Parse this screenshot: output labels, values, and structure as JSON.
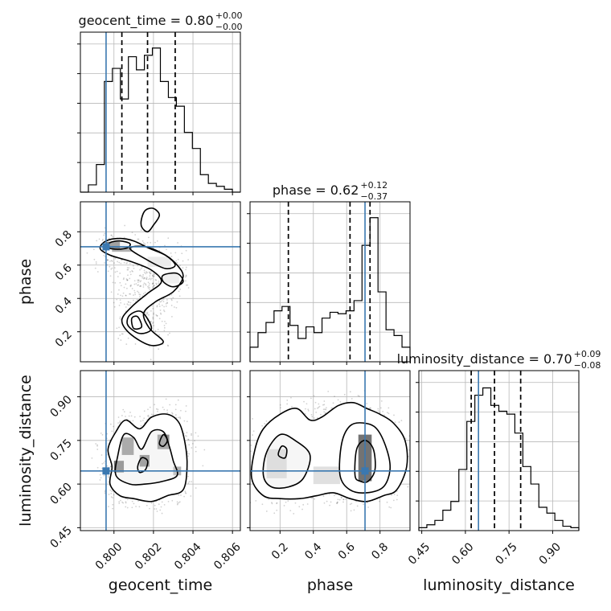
{
  "chart_data": {
    "type": "corner",
    "truth_color": "#3a78b0",
    "parameters": [
      {
        "name": "geocent_time",
        "axis_label": "geocent_time",
        "title_text": "geocent_time = 0.80",
        "title_sup": "+0.00",
        "title_sub": "−0.00",
        "range": [
          0.7983,
          0.8064
        ],
        "ticks": [
          0.8,
          0.802,
          0.804,
          0.806
        ],
        "tick_labels": [
          "0.800",
          "0.802",
          "0.804",
          "0.806"
        ],
        "truth": 0.7996,
        "quantiles": [
          0.8004,
          0.8017,
          0.8031
        ],
        "hist": [
          0.0,
          0.05,
          0.19,
          0.76,
          0.85,
          0.64,
          0.93,
          0.84,
          0.94,
          0.99,
          0.76,
          0.65,
          0.59,
          0.41,
          0.3,
          0.12,
          0.06,
          0.04,
          0.02,
          0.0
        ]
      },
      {
        "name": "phase",
        "axis_label": "phase",
        "title_text": "phase = 0.62",
        "title_sup": "+0.12",
        "title_sub": "−0.37",
        "range": [
          0.02,
          0.98
        ],
        "ticks": [
          0.2,
          0.4,
          0.6,
          0.8
        ],
        "tick_labels": [
          "0.2",
          "0.4",
          "0.6",
          "0.8"
        ],
        "truth": 0.71,
        "quantiles": [
          0.25,
          0.62,
          0.74
        ],
        "hist": [
          0.1,
          0.2,
          0.27,
          0.35,
          0.38,
          0.25,
          0.16,
          0.24,
          0.2,
          0.3,
          0.34,
          0.33,
          0.35,
          0.42,
          0.8,
          0.99,
          0.48,
          0.22,
          0.18,
          0.1
        ]
      },
      {
        "name": "luminosity_distance",
        "axis_label": "luminosity_distance",
        "title_text": "luminosity_distance = 0.70",
        "title_sup": "+0.09",
        "title_sub": "−0.08",
        "range": [
          0.44,
          0.99
        ],
        "ticks": [
          0.45,
          0.6,
          0.75,
          0.9
        ],
        "tick_labels": [
          "0.45",
          "0.60",
          "0.75",
          "0.90"
        ],
        "truth": 0.645,
        "quantiles": [
          0.62,
          0.7,
          0.79
        ],
        "hist": [
          0.02,
          0.04,
          0.07,
          0.14,
          0.2,
          0.42,
          0.75,
          0.93,
          0.98,
          0.86,
          0.82,
          0.8,
          0.67,
          0.44,
          0.32,
          0.16,
          0.12,
          0.07,
          0.03,
          0.02
        ]
      }
    ],
    "pairs": [
      {
        "x": "geocent_time",
        "y": "phase",
        "contours": [
          [
            [
              0.7996,
              0.745
            ],
            [
              0.8003,
              0.76
            ],
            [
              0.801,
              0.745
            ],
            [
              0.8018,
              0.7
            ],
            [
              0.8026,
              0.66
            ],
            [
              0.8032,
              0.6
            ],
            [
              0.8035,
              0.53
            ],
            [
              0.803,
              0.44
            ],
            [
              0.8021,
              0.38
            ],
            [
              0.8015,
              0.31
            ],
            [
              0.8018,
              0.22
            ],
            [
              0.8025,
              0.14
            ],
            [
              0.8018,
              0.12
            ],
            [
              0.8008,
              0.19
            ],
            [
              0.8004,
              0.27
            ],
            [
              0.8009,
              0.35
            ],
            [
              0.8017,
              0.43
            ],
            [
              0.8024,
              0.5
            ],
            [
              0.8019,
              0.57
            ],
            [
              0.8009,
              0.62
            ],
            [
              0.7998,
              0.66
            ],
            [
              0.7993,
              0.7
            ]
          ],
          [
            [
              0.7998,
              0.735
            ],
            [
              0.8003,
              0.745
            ],
            [
              0.8008,
              0.73
            ],
            [
              0.8007,
              0.705
            ],
            [
              0.8002,
              0.695
            ],
            [
              0.7997,
              0.705
            ]
          ],
          [
            [
              0.8016,
              0.93
            ],
            [
              0.802,
              0.94
            ],
            [
              0.8023,
              0.9
            ],
            [
              0.802,
              0.84
            ],
            [
              0.8017,
              0.8
            ],
            [
              0.8014,
              0.83
            ],
            [
              0.8014,
              0.88
            ]
          ],
          [
            [
              0.8008,
              0.7
            ],
            [
              0.8016,
              0.71
            ],
            [
              0.8026,
              0.66
            ],
            [
              0.8031,
              0.6
            ],
            [
              0.8026,
              0.58
            ],
            [
              0.8017,
              0.63
            ]
          ],
          [
            [
              0.8025,
              0.54
            ],
            [
              0.8032,
              0.55
            ],
            [
              0.8035,
              0.5
            ],
            [
              0.803,
              0.47
            ],
            [
              0.8025,
              0.5
            ]
          ],
          [
            [
              0.8008,
              0.3
            ],
            [
              0.8014,
              0.32
            ],
            [
              0.8019,
              0.22
            ],
            [
              0.8013,
              0.19
            ],
            [
              0.8007,
              0.24
            ]
          ],
          [
            [
              0.8009,
              0.28
            ],
            [
              0.8012,
              0.29
            ],
            [
              0.8014,
              0.23
            ],
            [
              0.801,
              0.22
            ]
          ]
        ],
        "density": [
          [
            0.7996,
            0.7,
            0.8003,
            0.74,
            0.5
          ],
          [
            0.7999,
            0.68,
            0.8009,
            0.71,
            0.3
          ],
          [
            0.8017,
            0.59,
            0.8029,
            0.65,
            0.08
          ],
          [
            0.8025,
            0.49,
            0.8033,
            0.55,
            0.06
          ]
        ]
      },
      {
        "x": "geocent_time",
        "y": "luminosity_distance",
        "contours": [
          [
            [
              0.7998,
              0.6
            ],
            [
              0.7999,
              0.66
            ],
            [
              0.7997,
              0.72
            ],
            [
              0.8001,
              0.78
            ],
            [
              0.8006,
              0.82
            ],
            [
              0.8013,
              0.79
            ],
            [
              0.8019,
              0.83
            ],
            [
              0.8027,
              0.84
            ],
            [
              0.8033,
              0.81
            ],
            [
              0.8036,
              0.74
            ],
            [
              0.8037,
              0.66
            ],
            [
              0.8035,
              0.58
            ],
            [
              0.8027,
              0.56
            ],
            [
              0.8019,
              0.54
            ],
            [
              0.801,
              0.55
            ],
            [
              0.8003,
              0.56
            ]
          ],
          [
            [
              0.8001,
              0.63
            ],
            [
              0.8002,
              0.7
            ],
            [
              0.8005,
              0.77
            ],
            [
              0.801,
              0.76
            ],
            [
              0.8014,
              0.72
            ],
            [
              0.8019,
              0.78
            ],
            [
              0.8025,
              0.78
            ],
            [
              0.8028,
              0.73
            ],
            [
              0.803,
              0.68
            ],
            [
              0.8032,
              0.63
            ],
            [
              0.8025,
              0.61
            ],
            [
              0.8016,
              0.6
            ],
            [
              0.8008,
              0.6
            ]
          ],
          [
            [
              0.8012,
              0.66
            ],
            [
              0.8014,
              0.69
            ],
            [
              0.8017,
              0.68
            ],
            [
              0.8016,
              0.65
            ],
            [
              0.8013,
              0.64
            ]
          ],
          [
            [
              0.8023,
              0.74
            ],
            [
              0.8025,
              0.77
            ],
            [
              0.8027,
              0.75
            ],
            [
              0.8025,
              0.73
            ]
          ]
        ],
        "density": [
          [
            0.8004,
            0.7,
            0.801,
            0.76,
            0.45
          ],
          [
            0.8013,
            0.66,
            0.8018,
            0.7,
            0.5
          ],
          [
            0.8022,
            0.72,
            0.8028,
            0.77,
            0.45
          ],
          [
            0.8,
            0.64,
            0.8005,
            0.68,
            0.55
          ],
          [
            0.803,
            0.63,
            0.8034,
            0.66,
            0.3
          ]
        ]
      },
      {
        "x": "phase",
        "y": "luminosity_distance",
        "contours": [
          [
            [
              0.03,
              0.62
            ],
            [
              0.05,
              0.72
            ],
            [
              0.1,
              0.79
            ],
            [
              0.2,
              0.84
            ],
            [
              0.3,
              0.86
            ],
            [
              0.38,
              0.82
            ],
            [
              0.45,
              0.83
            ],
            [
              0.55,
              0.87
            ],
            [
              0.64,
              0.88
            ],
            [
              0.72,
              0.86
            ],
            [
              0.8,
              0.84
            ],
            [
              0.88,
              0.81
            ],
            [
              0.95,
              0.75
            ],
            [
              0.96,
              0.66
            ],
            [
              0.9,
              0.58
            ],
            [
              0.82,
              0.56
            ],
            [
              0.72,
              0.54
            ],
            [
              0.62,
              0.55
            ],
            [
              0.52,
              0.57
            ],
            [
              0.42,
              0.56
            ],
            [
              0.32,
              0.55
            ],
            [
              0.2,
              0.55
            ],
            [
              0.1,
              0.56
            ]
          ],
          [
            [
              0.1,
              0.63
            ],
            [
              0.12,
              0.71
            ],
            [
              0.2,
              0.77
            ],
            [
              0.29,
              0.75
            ],
            [
              0.38,
              0.7
            ],
            [
              0.34,
              0.62
            ],
            [
              0.25,
              0.59
            ],
            [
              0.15,
              0.59
            ]
          ],
          [
            [
              0.56,
              0.63
            ],
            [
              0.57,
              0.74
            ],
            [
              0.62,
              0.8
            ],
            [
              0.7,
              0.81
            ],
            [
              0.78,
              0.79
            ],
            [
              0.84,
              0.72
            ],
            [
              0.86,
              0.65
            ],
            [
              0.82,
              0.59
            ],
            [
              0.72,
              0.57
            ],
            [
              0.62,
              0.58
            ]
          ],
          [
            [
              0.65,
              0.63
            ],
            [
              0.66,
              0.72
            ],
            [
              0.71,
              0.75
            ],
            [
              0.76,
              0.72
            ],
            [
              0.77,
              0.65
            ],
            [
              0.73,
              0.61
            ],
            [
              0.68,
              0.61
            ]
          ],
          [
            [
              0.19,
              0.7
            ],
            [
              0.21,
              0.73
            ],
            [
              0.24,
              0.72
            ],
            [
              0.23,
              0.69
            ]
          ]
        ],
        "density": [
          [
            0.67,
            0.61,
            0.75,
            0.77,
            0.55
          ],
          [
            0.4,
            0.6,
            0.56,
            0.66,
            0.12
          ],
          [
            0.12,
            0.62,
            0.24,
            0.72,
            0.14
          ]
        ]
      }
    ]
  }
}
